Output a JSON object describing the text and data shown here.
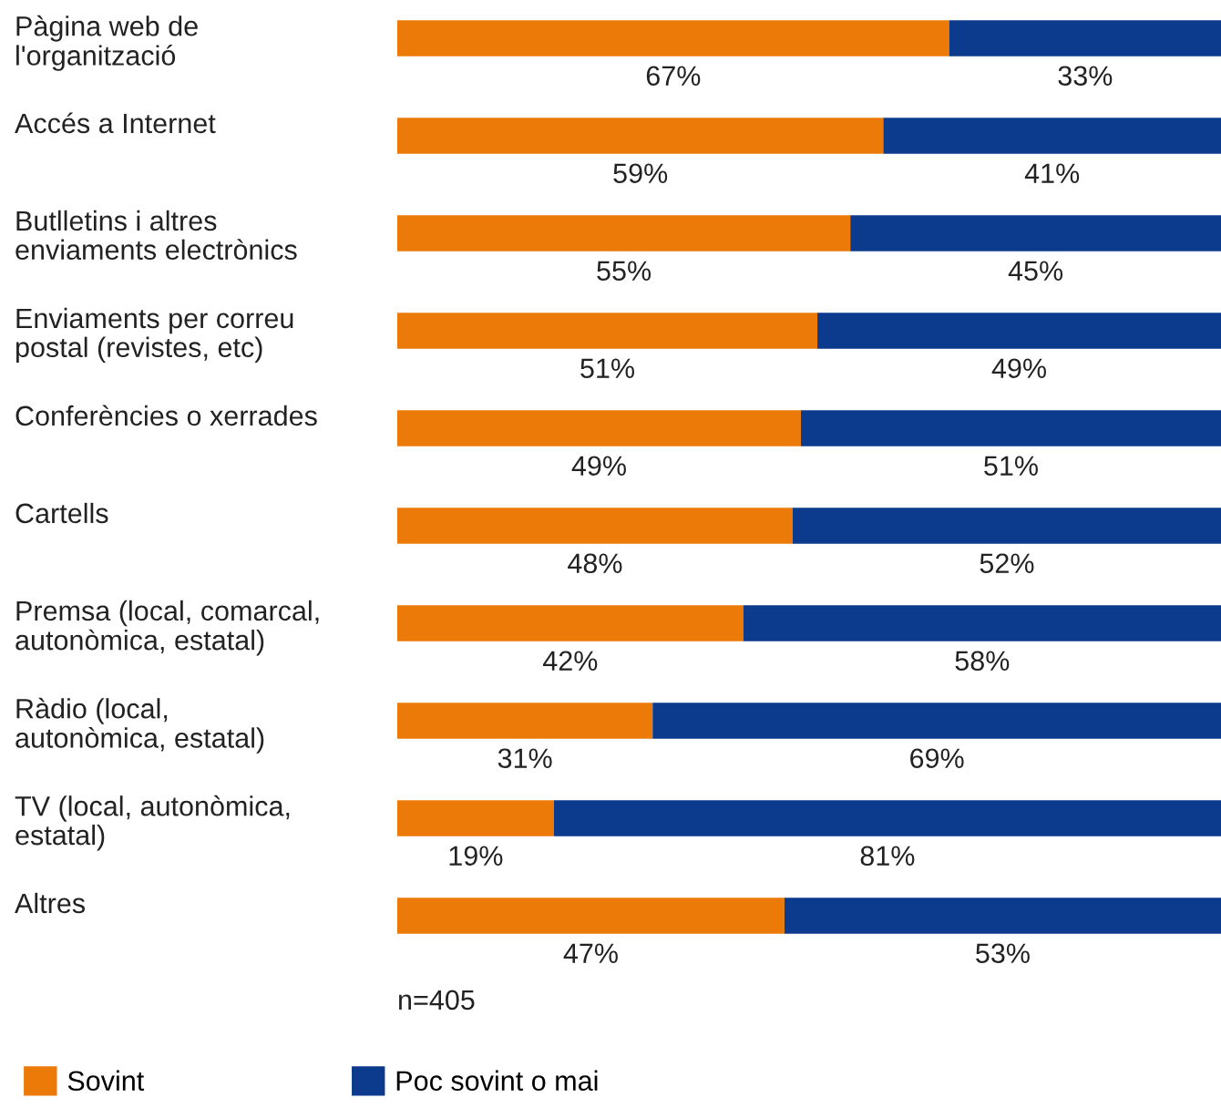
{
  "chart_data": {
    "type": "bar",
    "orientation": "horizontal",
    "stacked": true,
    "legend": "bottom left",
    "categories": [
      "Pàgina web de\nl'organització",
      "Accés a Internet",
      "Butlletins i altres\nenviaments electrònics",
      "Enviaments per correu\npostal (revistes, etc)",
      "Conferències o xerrades",
      "Cartells",
      "Premsa (local, comarcal,\nautonòmica, estatal)",
      "Ràdio (local,\nautonòmica, estatal)",
      "TV (local, autonòmica,\nestatal)",
      "Altres"
    ],
    "series": [
      {
        "name": "Sovint",
        "color": "#ec7a08",
        "values": [
          67,
          59,
          55,
          51,
          49,
          48,
          42,
          31,
          19,
          47
        ],
        "value_labels": [
          "67%",
          "59%",
          "55%",
          "51%",
          "49%",
          "48%",
          "42%",
          "31%",
          "19%",
          "47%"
        ]
      },
      {
        "name": "Poc sovint o mai",
        "color": "#0c3a8c",
        "values": [
          33,
          41,
          45,
          49,
          51,
          52,
          58,
          69,
          81,
          53
        ],
        "value_labels": [
          "33%",
          "41%",
          "45%",
          "49%",
          "51%",
          "52%",
          "58%",
          "69%",
          "81%",
          "53%"
        ]
      }
    ],
    "annotations": [
      "n=405"
    ]
  }
}
